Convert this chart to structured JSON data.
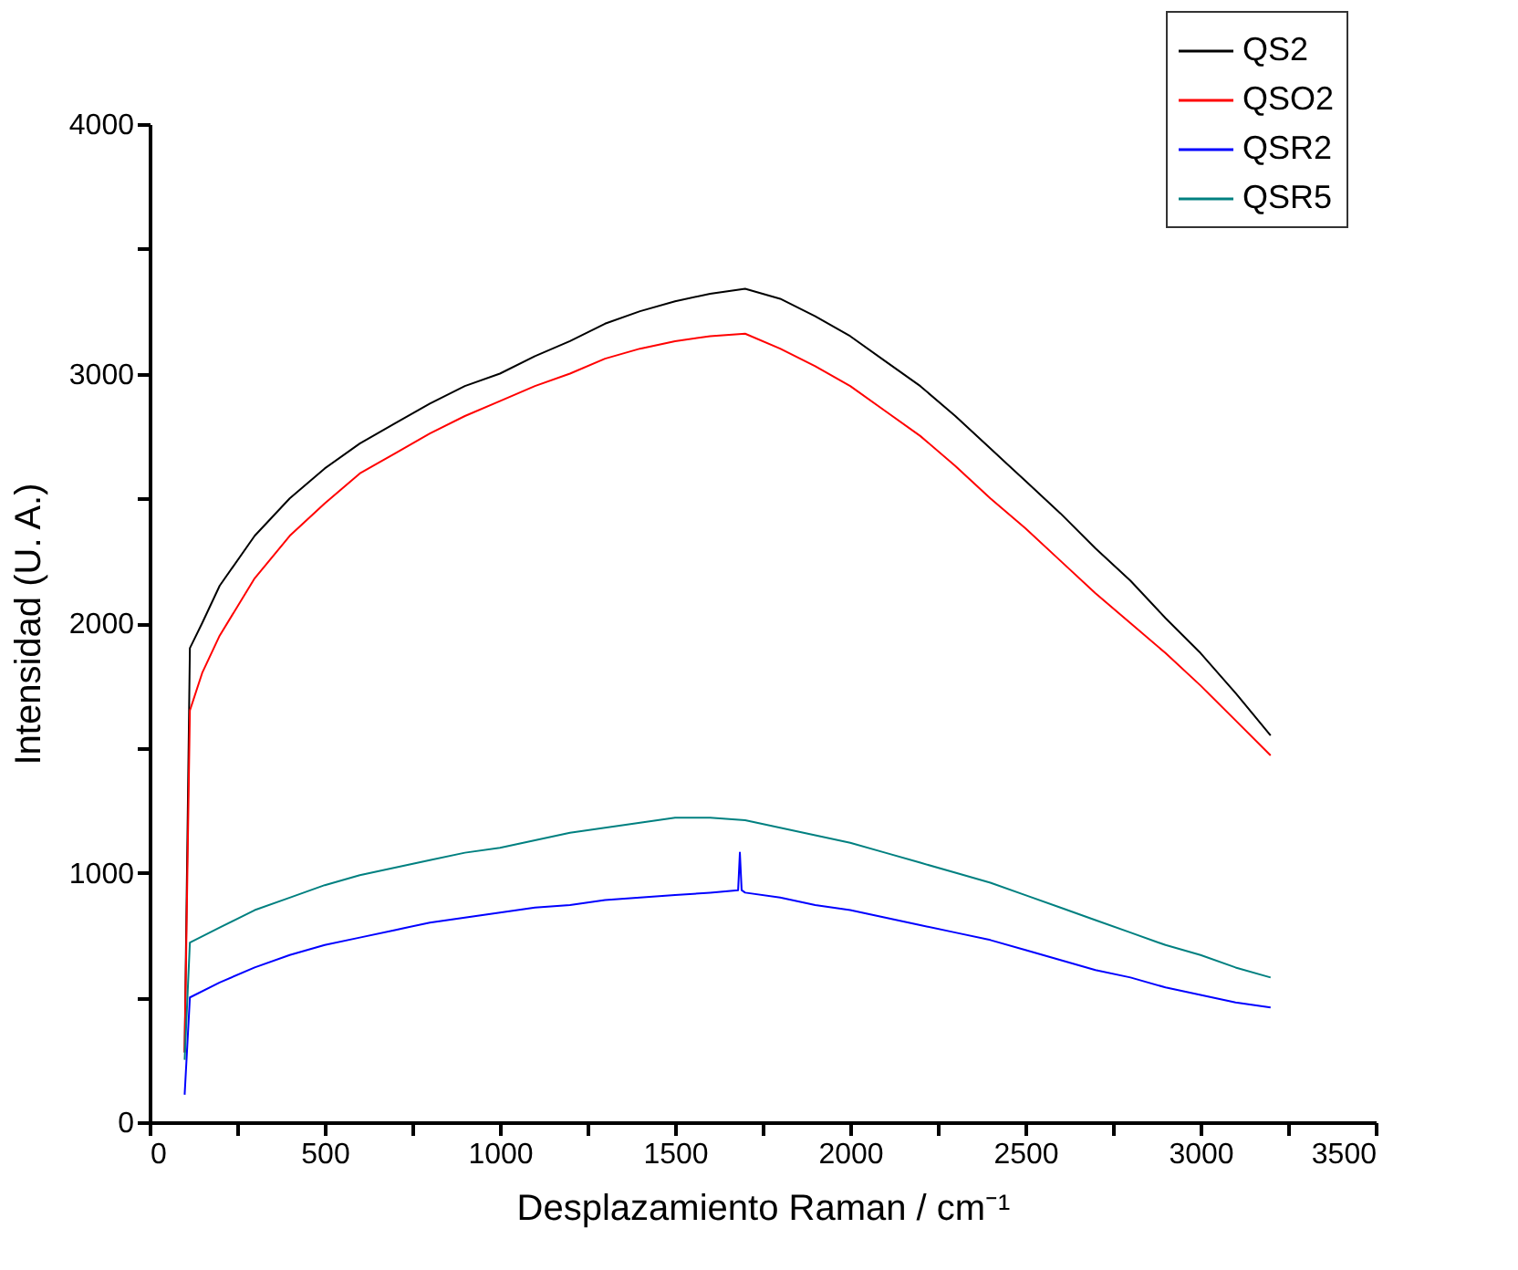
{
  "chart_data": {
    "type": "line",
    "xlabel": "Desplazamiento Raman / cm⁻¹",
    "ylabel": "Intensidad (U. A.)",
    "xlim": [
      0,
      3500
    ],
    "ylim": [
      0,
      4000
    ],
    "xticks": [
      0,
      {
        "value": 250,
        "label": null
      },
      500,
      {
        "value": 750,
        "label": null
      },
      1000,
      {
        "value": 1250,
        "label": null
      },
      1500,
      {
        "value": 1750,
        "label": null
      },
      2000,
      {
        "value": 2250,
        "label": null
      },
      2500,
      {
        "value": 2750,
        "label": null
      },
      3000,
      {
        "value": 3250,
        "label": null
      },
      3500
    ],
    "yticks": [
      0,
      {
        "value": 500,
        "label": null
      },
      1000,
      {
        "value": 1500,
        "label": null
      },
      2000,
      {
        "value": 2500,
        "label": null
      },
      3000,
      {
        "value": 3500,
        "label": null
      },
      4000
    ],
    "grid": false,
    "legend": "top right",
    "marker": "none",
    "line_style": "solid",
    "series": [
      {
        "name": "QS2",
        "color": "#000000",
        "x": [
          100,
          115,
          150,
          200,
          300,
          400,
          500,
          600,
          700,
          800,
          900,
          1000,
          1100,
          1200,
          1300,
          1400,
          1500,
          1600,
          1700,
          1800,
          1900,
          2000,
          2100,
          2200,
          2300,
          2400,
          2500,
          2600,
          2700,
          2800,
          2900,
          3000,
          3100,
          3200
        ],
        "values": [
          280,
          1900,
          2000,
          2150,
          2350,
          2500,
          2620,
          2720,
          2800,
          2880,
          2950,
          3000,
          3070,
          3130,
          3200,
          3250,
          3290,
          3320,
          3340,
          3300,
          3230,
          3150,
          3050,
          2950,
          2830,
          2700,
          2570,
          2440,
          2300,
          2170,
          2020,
          1880,
          1720,
          1550
        ]
      },
      {
        "name": "QSO2",
        "color": "#ff0000",
        "x": [
          100,
          115,
          150,
          200,
          300,
          400,
          500,
          600,
          700,
          800,
          900,
          1000,
          1100,
          1200,
          1300,
          1400,
          1500,
          1600,
          1700,
          1800,
          1900,
          2000,
          2100,
          2200,
          2300,
          2400,
          2500,
          2600,
          2700,
          2800,
          2900,
          3000,
          3100,
          3200
        ],
        "values": [
          280,
          1650,
          1800,
          1950,
          2180,
          2350,
          2480,
          2600,
          2680,
          2760,
          2830,
          2890,
          2950,
          3000,
          3060,
          3100,
          3130,
          3150,
          3160,
          3100,
          3030,
          2950,
          2850,
          2750,
          2630,
          2500,
          2380,
          2250,
          2120,
          2000,
          1880,
          1750,
          1610,
          1470
        ]
      },
      {
        "name": "QSR2",
        "color": "#0000ff",
        "x": [
          100,
          115,
          200,
          300,
          400,
          500,
          600,
          700,
          800,
          900,
          1000,
          1100,
          1200,
          1300,
          1400,
          1500,
          1600,
          1680,
          1685,
          1690,
          1700,
          1800,
          1900,
          2000,
          2100,
          2200,
          2300,
          2400,
          2500,
          2600,
          2700,
          2800,
          2900,
          3000,
          3100,
          3200
        ],
        "values": [
          110,
          500,
          560,
          620,
          670,
          710,
          740,
          770,
          800,
          820,
          840,
          860,
          870,
          890,
          900,
          910,
          920,
          930,
          1080,
          930,
          920,
          900,
          870,
          850,
          820,
          790,
          760,
          730,
          690,
          650,
          610,
          580,
          540,
          510,
          480,
          460
        ]
      },
      {
        "name": "QSR5",
        "color": "#008080",
        "x": [
          100,
          115,
          200,
          300,
          400,
          500,
          600,
          700,
          800,
          900,
          1000,
          1100,
          1200,
          1300,
          1400,
          1500,
          1600,
          1700,
          1800,
          1900,
          2000,
          2100,
          2200,
          2300,
          2400,
          2500,
          2600,
          2700,
          2800,
          2900,
          3000,
          3100,
          3200
        ],
        "values": [
          250,
          720,
          780,
          850,
          900,
          950,
          990,
          1020,
          1050,
          1080,
          1100,
          1130,
          1160,
          1180,
          1200,
          1220,
          1220,
          1210,
          1180,
          1150,
          1120,
          1080,
          1040,
          1000,
          960,
          910,
          860,
          810,
          760,
          710,
          670,
          620,
          580
        ]
      }
    ]
  }
}
